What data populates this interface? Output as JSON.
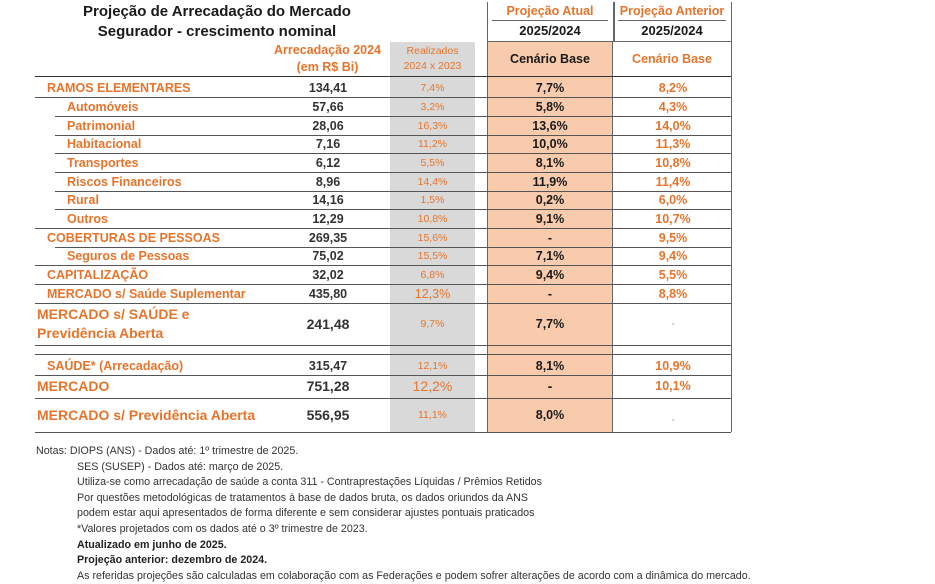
{
  "title_line1": "Projeção de Arrecadação do Mercado",
  "title_line2": "Segurador - crescimento nominal",
  "header": {
    "arrecadacao_line1": "Arrecadação 2024",
    "arrecadacao_line2": "(em R$ Bi)",
    "realizados_line1": "Realizados",
    "realizados_line2": "2024 x 2023",
    "proj_atual": "Projeção Atual",
    "proj_atual_period": "2025/2024",
    "proj_atual_scenario": "Cenário Base",
    "proj_anterior": "Projeção Anterior",
    "proj_anterior_period": "2025/2024",
    "proj_anterior_scenario": "Cenário Base"
  },
  "rows": [
    {
      "label": "RAMOS ELEMENTARES",
      "arrecadacao": "134,41",
      "realizados": "7,4%",
      "atual": "7,7%",
      "anterior": "8,2%"
    },
    {
      "label": "Automóveis",
      "arrecadacao": "57,66",
      "realizados": "3,2%",
      "atual": "5,8%",
      "anterior": "4,3%"
    },
    {
      "label": "Patrimonial",
      "arrecadacao": "28,06",
      "realizados": "16,3%",
      "atual": "13,6%",
      "anterior": "14,0%"
    },
    {
      "label": "Habitacional",
      "arrecadacao": "7,16",
      "realizados": "11,2%",
      "atual": "10,0%",
      "anterior": "11,3%"
    },
    {
      "label": "Transportes",
      "arrecadacao": "6,12",
      "realizados": "5,5%",
      "atual": "8,1%",
      "anterior": "10,8%"
    },
    {
      "label": "Riscos Financeiros",
      "arrecadacao": "8,96",
      "realizados": "14,4%",
      "atual": "11,9%",
      "anterior": "11,4%"
    },
    {
      "label": "Rural",
      "arrecadacao": "14,16",
      "realizados": "1,5%",
      "atual": "0,2%",
      "anterior": "6,0%"
    },
    {
      "label": "Outros",
      "arrecadacao": "12,29",
      "realizados": "10,8%",
      "atual": "9,1%",
      "anterior": "10,7%"
    },
    {
      "label": "COBERTURAS DE PESSOAS",
      "arrecadacao": "269,35",
      "realizados": "15,6%",
      "atual": "-",
      "anterior": "9,5%"
    },
    {
      "label": "Seguros de Pessoas",
      "arrecadacao": "75,02",
      "realizados": "15,5%",
      "atual": "7,1%",
      "anterior": "9,4%"
    },
    {
      "label": "CAPITALIZAÇÃO",
      "arrecadacao": "32,02",
      "realizados": "6,8%",
      "atual": "9,4%",
      "anterior": "5,5%"
    },
    {
      "label": "MERCADO s/ Saúde Suplementar",
      "arrecadacao": "435,80",
      "realizados": "12,3%",
      "atual": "-",
      "anterior": "8,8%"
    },
    {
      "label_line1": "MERCADO s/ SAÚDE  e",
      "label_line2": "Previdência Aberta",
      "arrecadacao": "241,48",
      "realizados": "9,7%",
      "atual": "7,7%",
      "anterior": "-"
    },
    {
      "label": "SAÚDE* (Arrecadação)",
      "arrecadacao": "315,47",
      "realizados": "12,1%",
      "atual": "8,1%",
      "anterior": "10,9%"
    },
    {
      "label": "MERCADO",
      "arrecadacao": "751,28",
      "realizados": "12,2%",
      "atual": "-",
      "anterior": "10,1%"
    },
    {
      "label": "MERCADO s/ Previdência Aberta",
      "arrecadacao": "556,95",
      "realizados": "11,1%",
      "atual": "8,0%",
      "anterior": "-"
    }
  ],
  "notes": {
    "n1": "Notas: DIOPS (ANS) - Dados até: 1º trimestre de 2025.",
    "n2": "SES (SUSEP) - Dados até: março de 2025.",
    "n3": "Utiliza-se como arrecadação de saúde a conta 311 - Contraprestações Líquidas / Prêmios Retidos",
    "n4": "Por questões metodológicas de tratamentos à base de dados bruta, os dados oriundos da ANS",
    "n5": "podem estar aqui apresentados de forma diferente e sem considerar ajustes pontuais praticados",
    "n6": "*Valores projetados com os dados até o 3º trimestre de 2023.",
    "n7": "Atualizado em junho de 2025.",
    "n8": "Projeção anterior:  dezembro de 2024.",
    "n9": "As referidas projeções são calculadas em colaboração com as Federações e podem sofrer alterações de acordo com a dinâmica do mercado."
  }
}
